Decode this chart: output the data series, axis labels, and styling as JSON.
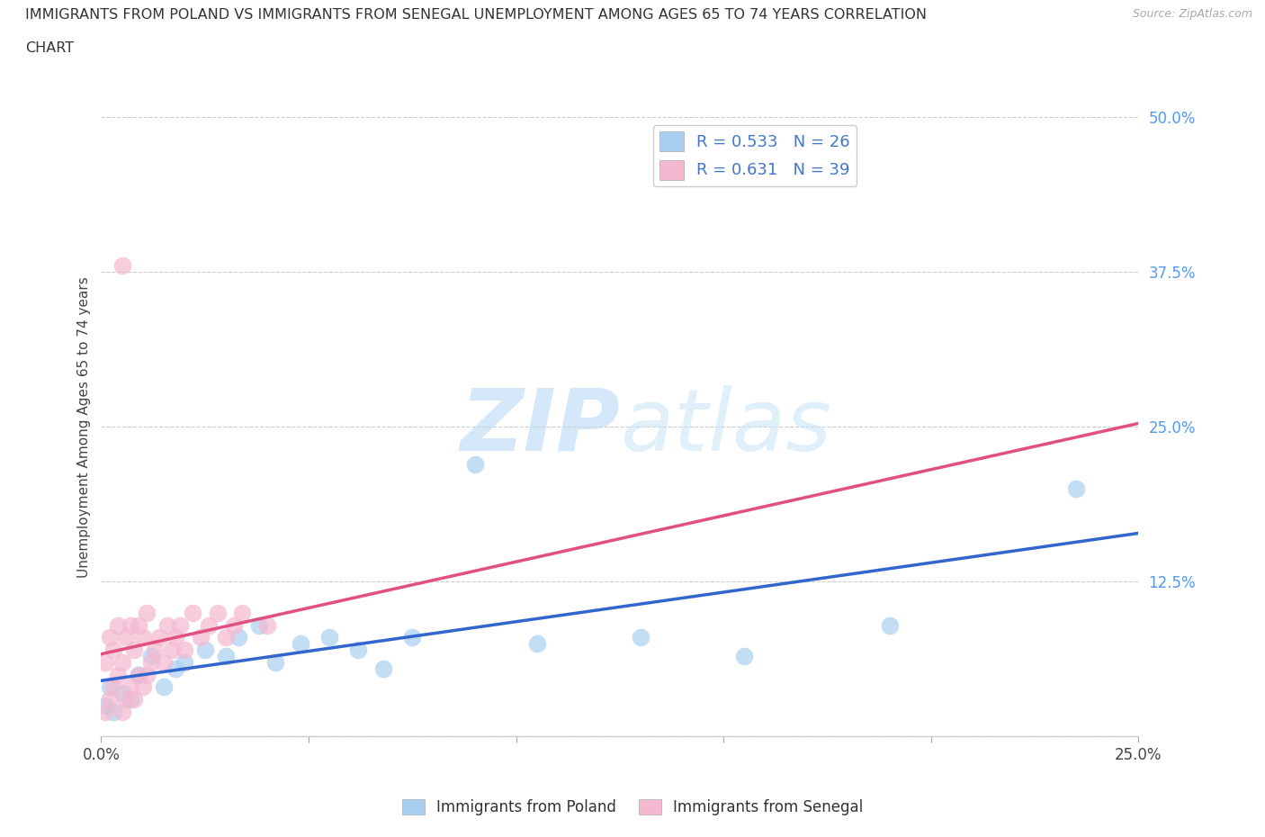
{
  "title_line1": "IMMIGRANTS FROM POLAND VS IMMIGRANTS FROM SENEGAL UNEMPLOYMENT AMONG AGES 65 TO 74 YEARS CORRELATION",
  "title_line2": "CHART",
  "source": "Source: ZipAtlas.com",
  "ylabel": "Unemployment Among Ages 65 to 74 years",
  "xlim": [
    0.0,
    0.25
  ],
  "ylim": [
    0.0,
    0.5
  ],
  "xticks": [
    0.0,
    0.05,
    0.1,
    0.15,
    0.2,
    0.25
  ],
  "yticks": [
    0.0,
    0.125,
    0.25,
    0.375,
    0.5
  ],
  "poland_color": "#a8cff0",
  "senegal_color": "#f4b8d0",
  "poland_line_color": "#3366cc",
  "senegal_line_color": "#e05080",
  "R_poland": 0.533,
  "N_poland": 26,
  "R_senegal": 0.631,
  "N_senegal": 39,
  "watermark_zip": "ZIP",
  "watermark_atlas": "atlas",
  "legend_label_poland": "Immigrants from Poland",
  "legend_label_senegal": "Immigrants from Senegal",
  "poland_x": [
    0.001,
    0.002,
    0.003,
    0.005,
    0.007,
    0.009,
    0.012,
    0.015,
    0.018,
    0.02,
    0.025,
    0.03,
    0.033,
    0.038,
    0.042,
    0.048,
    0.055,
    0.062,
    0.068,
    0.075,
    0.09,
    0.105,
    0.13,
    0.155,
    0.19,
    0.235
  ],
  "poland_y": [
    0.025,
    0.04,
    0.02,
    0.035,
    0.03,
    0.05,
    0.065,
    0.04,
    0.055,
    0.06,
    0.07,
    0.065,
    0.08,
    0.09,
    0.06,
    0.075,
    0.08,
    0.07,
    0.055,
    0.08,
    0.22,
    0.075,
    0.08,
    0.065,
    0.09,
    0.2
  ],
  "senegal_x": [
    0.001,
    0.001,
    0.002,
    0.002,
    0.003,
    0.003,
    0.004,
    0.004,
    0.005,
    0.005,
    0.006,
    0.006,
    0.007,
    0.007,
    0.008,
    0.008,
    0.009,
    0.009,
    0.01,
    0.01,
    0.011,
    0.011,
    0.012,
    0.013,
    0.014,
    0.015,
    0.016,
    0.017,
    0.018,
    0.019,
    0.02,
    0.022,
    0.024,
    0.026,
    0.028,
    0.03,
    0.032,
    0.034,
    0.04
  ],
  "senegal_y": [
    0.02,
    0.06,
    0.03,
    0.08,
    0.04,
    0.07,
    0.05,
    0.09,
    0.02,
    0.06,
    0.03,
    0.08,
    0.04,
    0.09,
    0.03,
    0.07,
    0.05,
    0.09,
    0.04,
    0.08,
    0.05,
    0.1,
    0.06,
    0.07,
    0.08,
    0.06,
    0.09,
    0.07,
    0.08,
    0.09,
    0.07,
    0.1,
    0.08,
    0.09,
    0.1,
    0.08,
    0.09,
    0.1,
    0.09
  ],
  "senegal_outlier_x": [
    0.005
  ],
  "senegal_outlier_y": [
    0.38
  ]
}
